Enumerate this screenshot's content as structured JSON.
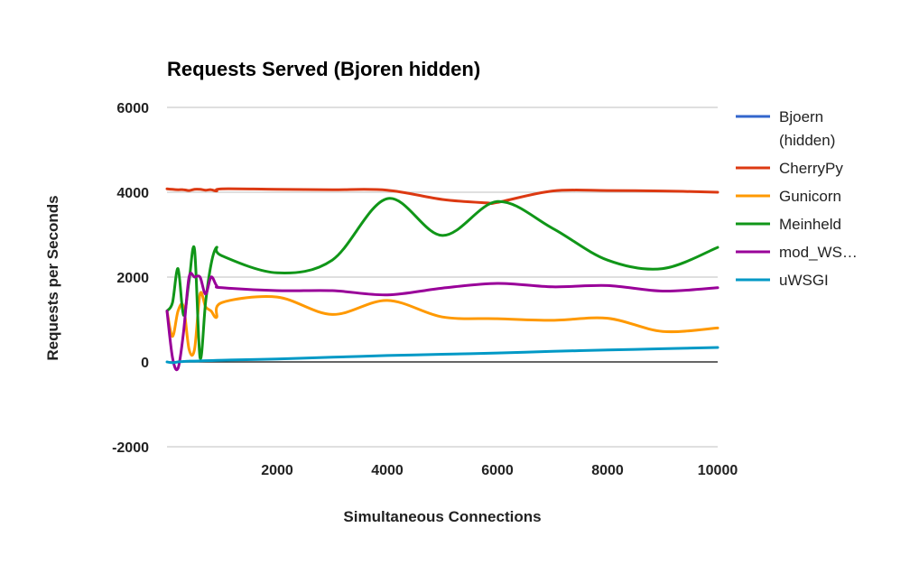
{
  "chart_data": {
    "type": "line",
    "title": "Requests Served (Bjoren hidden)",
    "xlabel": "Simultaneous Connections",
    "ylabel": "Requests per Seconds",
    "xlim": [
      0,
      10000
    ],
    "ylim": [
      -2000,
      6000
    ],
    "x_ticks": [
      2000,
      4000,
      6000,
      8000,
      10000
    ],
    "y_ticks": [
      6000,
      4000,
      2000,
      0,
      -2000
    ],
    "grid": true,
    "legend_position": "right",
    "series": [
      {
        "name": "Bjoern\n(hidden)",
        "color": "#3366cc",
        "x": [],
        "y": []
      },
      {
        "name": "CherryPy",
        "color": "#dc3912",
        "x": [
          0,
          100,
          200,
          300,
          400,
          500,
          600,
          700,
          800,
          900,
          1000,
          2000,
          3000,
          4000,
          5000,
          5800,
          6000,
          7000,
          8000,
          9000,
          10000
        ],
        "y": [
          4080,
          4070,
          4060,
          4060,
          4040,
          4070,
          4070,
          4050,
          4060,
          4030,
          4080,
          4070,
          4060,
          4050,
          3830,
          3750,
          3760,
          4030,
          4040,
          4030,
          4000
        ]
      },
      {
        "name": "Gunicorn",
        "color": "#ff9900",
        "x": [
          0,
          100,
          200,
          300,
          400,
          500,
          600,
          700,
          800,
          900,
          1000,
          2000,
          3000,
          4000,
          5000,
          6000,
          7000,
          8000,
          9000,
          10000
        ],
        "y": [
          1200,
          600,
          1200,
          1300,
          300,
          300,
          1600,
          1300,
          1200,
          1050,
          1400,
          1530,
          1120,
          1450,
          1060,
          1020,
          980,
          1030,
          720,
          800
        ]
      },
      {
        "name": "Meinheld",
        "color": "#109618",
        "x": [
          0,
          100,
          200,
          300,
          400,
          500,
          600,
          700,
          800,
          900,
          1000,
          2000,
          3000,
          4000,
          5000,
          6000,
          7000,
          8000,
          9000,
          10000
        ],
        "y": [
          1200,
          1400,
          2200,
          1100,
          1900,
          2650,
          100,
          1400,
          2300,
          2700,
          2500,
          2100,
          2400,
          3850,
          2980,
          3780,
          3150,
          2400,
          2200,
          2700
        ]
      },
      {
        "name": "mod_WS…",
        "color": "#990099",
        "x": [
          0,
          100,
          200,
          300,
          400,
          500,
          600,
          700,
          800,
          900,
          1000,
          2000,
          3000,
          4000,
          5000,
          6000,
          7000,
          8000,
          9000,
          10000
        ],
        "y": [
          1200,
          100,
          -150,
          700,
          2000,
          2000,
          2000,
          1600,
          2000,
          1800,
          1750,
          1680,
          1680,
          1580,
          1740,
          1850,
          1770,
          1800,
          1670,
          1750
        ]
      },
      {
        "name": "uWSGI",
        "color": "#0099c6",
        "x": [
          0,
          100,
          200,
          300,
          400,
          500,
          1000,
          2000,
          3000,
          4000,
          5000,
          6000,
          7000,
          8000,
          9000,
          10000
        ],
        "y": [
          0,
          -20,
          0,
          10,
          20,
          20,
          40,
          70,
          110,
          150,
          180,
          210,
          250,
          280,
          310,
          340
        ]
      }
    ]
  }
}
